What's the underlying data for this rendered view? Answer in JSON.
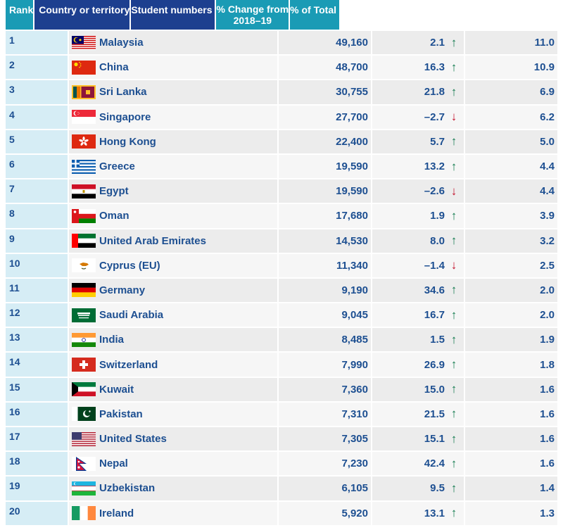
{
  "headers": {
    "rank": "Rank",
    "country": "Country or territory",
    "students": "Student numbers",
    "change_line1": "% Change from",
    "change_line2": "2018–19",
    "pct_total": "% of Total"
  },
  "rows": [
    {
      "rank": "1",
      "country": "Malaysia",
      "flag": "malaysia-flag-icon",
      "students": "49,160",
      "change": "2.1",
      "direction": "up",
      "pct": "11.0"
    },
    {
      "rank": "2",
      "country": "China",
      "flag": "china-flag-icon",
      "students": "48,700",
      "change": "16.3",
      "direction": "up",
      "pct": "10.9"
    },
    {
      "rank": "3",
      "country": "Sri Lanka",
      "flag": "sri-lanka-flag-icon",
      "students": "30,755",
      "change": "21.8",
      "direction": "up",
      "pct": "6.9"
    },
    {
      "rank": "4",
      "country": "Singapore",
      "flag": "singapore-flag-icon",
      "students": "27,700",
      "change": "–2.7",
      "direction": "down",
      "pct": "6.2"
    },
    {
      "rank": "5",
      "country": "Hong Kong",
      "flag": "hong-kong-flag-icon",
      "students": "22,400",
      "change": "5.7",
      "direction": "up",
      "pct": "5.0"
    },
    {
      "rank": "6",
      "country": "Greece",
      "flag": "greece-flag-icon",
      "students": "19,590",
      "change": "13.2",
      "direction": "up",
      "pct": "4.4"
    },
    {
      "rank": "7",
      "country": "Egypt",
      "flag": "egypt-flag-icon",
      "students": "19,590",
      "change": "–2.6",
      "direction": "down",
      "pct": "4.4"
    },
    {
      "rank": "8",
      "country": "Oman",
      "flag": "oman-flag-icon",
      "students": "17,680",
      "change": "1.9",
      "direction": "up",
      "pct": "3.9"
    },
    {
      "rank": "9",
      "country": "United Arab Emirates",
      "flag": "uae-flag-icon",
      "students": "14,530",
      "change": "8.0",
      "direction": "up",
      "pct": "3.2"
    },
    {
      "rank": "10",
      "country": "Cyprus (EU)",
      "flag": "cyprus-flag-icon",
      "students": "11,340",
      "change": "–1.4",
      "direction": "down",
      "pct": "2.5"
    },
    {
      "rank": "11",
      "country": "Germany",
      "flag": "germany-flag-icon",
      "students": "9,190",
      "change": "34.6",
      "direction": "up",
      "pct": "2.0"
    },
    {
      "rank": "12",
      "country": "Saudi Arabia",
      "flag": "saudi-arabia-flag-icon",
      "students": "9,045",
      "change": "16.7",
      "direction": "up",
      "pct": "2.0"
    },
    {
      "rank": "13",
      "country": "India",
      "flag": "india-flag-icon",
      "students": "8,485",
      "change": "1.5",
      "direction": "up",
      "pct": "1.9"
    },
    {
      "rank": "14",
      "country": "Switzerland",
      "flag": "switzerland-flag-icon",
      "students": "7,990",
      "change": "26.9",
      "direction": "up",
      "pct": "1.8"
    },
    {
      "rank": "15",
      "country": "Kuwait",
      "flag": "kuwait-flag-icon",
      "students": "7,360",
      "change": "15.0",
      "direction": "up",
      "pct": "1.6"
    },
    {
      "rank": "16",
      "country": "Pakistan",
      "flag": "pakistan-flag-icon",
      "students": "7,310",
      "change": "21.5",
      "direction": "up",
      "pct": "1.6"
    },
    {
      "rank": "17",
      "country": "United States",
      "flag": "united-states-flag-icon",
      "students": "7,305",
      "change": "15.1",
      "direction": "up",
      "pct": "1.6"
    },
    {
      "rank": "18",
      "country": "Nepal",
      "flag": "nepal-flag-icon",
      "students": "7,230",
      "change": "42.4",
      "direction": "up",
      "pct": "1.6"
    },
    {
      "rank": "19",
      "country": "Uzbekistan",
      "flag": "uzbekistan-flag-icon",
      "students": "6,105",
      "change": "9.5",
      "direction": "up",
      "pct": "1.4"
    },
    {
      "rank": "20",
      "country": "Ireland",
      "flag": "ireland-flag-icon",
      "students": "5,920",
      "change": "13.1",
      "direction": "up",
      "pct": "1.3"
    }
  ],
  "arrows": {
    "up": "↑",
    "down": "↓"
  },
  "colors": {
    "header_dark": "#1d3f8f",
    "header_teal": "#1a9bb5",
    "text_blue": "#1d4f91",
    "up_green": "#117a4d",
    "down_red": "#c2112b"
  }
}
